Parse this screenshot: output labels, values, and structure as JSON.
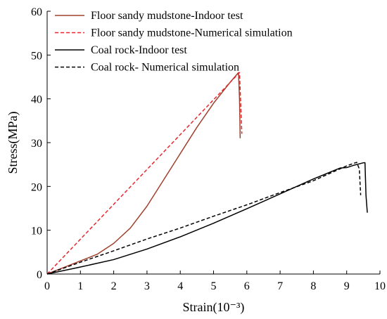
{
  "chart_data": {
    "type": "line",
    "xlabel": "Strain(10⁻³)",
    "ylabel": "Stress(MPa)",
    "xlim": [
      0,
      10
    ],
    "ylim": [
      0,
      60
    ],
    "x_ticks": [
      0,
      1,
      2,
      3,
      4,
      5,
      6,
      7,
      8,
      9,
      10
    ],
    "y_ticks": [
      0,
      10,
      20,
      30,
      40,
      50,
      60
    ],
    "grid": false,
    "legend_placement": "top-left",
    "series": [
      {
        "name": "Floor sandy mudstone-Indoor test",
        "color": "#a0412d",
        "dash": "solid",
        "points": [
          [
            0,
            0
          ],
          [
            0.5,
            1.5
          ],
          [
            1,
            3
          ],
          [
            1.5,
            4.5
          ],
          [
            2,
            7
          ],
          [
            2.5,
            10.5
          ],
          [
            3,
            15.5
          ],
          [
            3.5,
            21.5
          ],
          [
            4,
            27.5
          ],
          [
            4.5,
            33.5
          ],
          [
            5,
            39
          ],
          [
            5.5,
            43.8
          ],
          [
            5.75,
            46
          ],
          [
            5.78,
            40
          ],
          [
            5.8,
            31
          ]
        ]
      },
      {
        "name": "Floor sandy mudstone-Numerical simulation",
        "color": "#e8262e",
        "dash": "dashed",
        "points": [
          [
            0,
            0
          ],
          [
            5.78,
            46
          ],
          [
            5.82,
            38
          ],
          [
            5.85,
            32
          ]
        ]
      },
      {
        "name": "Coal rock-Indoor test",
        "color": "#000000",
        "dash": "solid",
        "points": [
          [
            0,
            0
          ],
          [
            1,
            1.6
          ],
          [
            2,
            3.3
          ],
          [
            3,
            5.7
          ],
          [
            4,
            8.5
          ],
          [
            5,
            11.6
          ],
          [
            6,
            14.9
          ],
          [
            7,
            18.3
          ],
          [
            8,
            21.7
          ],
          [
            8.8,
            24.2
          ],
          [
            9,
            24.3
          ],
          [
            9.2,
            24.8
          ],
          [
            9.5,
            25.4
          ],
          [
            9.55,
            25.4
          ],
          [
            9.58,
            18
          ],
          [
            9.62,
            14
          ]
        ]
      },
      {
        "name": "Coal rock- Numerical simulation",
        "color": "#000000",
        "dash": "dashed",
        "points": [
          [
            0,
            0
          ],
          [
            1,
            2.7
          ],
          [
            2,
            5.3
          ],
          [
            3,
            8.0
          ],
          [
            4,
            10.5
          ],
          [
            5,
            13.2
          ],
          [
            6,
            15.8
          ],
          [
            7,
            18.6
          ],
          [
            8,
            21.3
          ],
          [
            9,
            24.7
          ],
          [
            9.3,
            25.5
          ],
          [
            9.38,
            24
          ],
          [
            9.42,
            18
          ]
        ]
      }
    ]
  }
}
